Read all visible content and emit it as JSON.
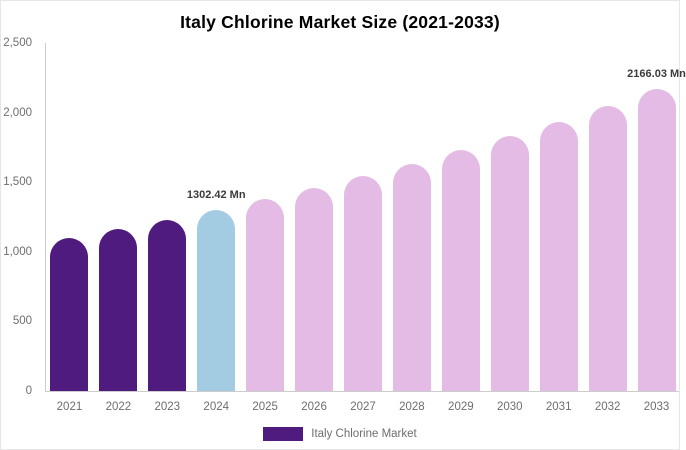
{
  "title": "Italy Chlorine Market Size (2021-2033)",
  "legend": {
    "label": "Italy Chlorine Market"
  },
  "colors": {
    "historical": "#4F1B7E",
    "current": "#A3CBE1",
    "forecast": "#E4BBE5",
    "axis_line": "#cccccc",
    "tick_text": "#6e6e6e",
    "annotation_text": "#3b3b3b"
  },
  "chart_data": {
    "type": "bar",
    "title": "Italy Chlorine Market Size (2021-2033)",
    "unit": "Mn",
    "categories": [
      "2021",
      "2022",
      "2023",
      "2024",
      "2025",
      "2026",
      "2027",
      "2028",
      "2029",
      "2030",
      "2031",
      "2032",
      "2033"
    ],
    "values": [
      1099,
      1163,
      1231,
      1302.42,
      1378,
      1458,
      1543,
      1633,
      1728,
      1829,
      1935,
      2047,
      2166.03
    ],
    "bar_roles": [
      "historical",
      "historical",
      "historical",
      "current",
      "forecast",
      "forecast",
      "forecast",
      "forecast",
      "forecast",
      "forecast",
      "forecast",
      "forecast",
      "forecast"
    ],
    "annotations": [
      {
        "category": "2024",
        "text": "1302.42 Mn"
      },
      {
        "category": "2033",
        "text": "2166.03 Mn"
      }
    ],
    "ylim": [
      0,
      2500
    ],
    "ytick_values": [
      0,
      500,
      1000,
      1500,
      2000,
      2500
    ],
    "ytick_labels": [
      "0",
      "500",
      "1,000",
      "1,500",
      "2,000",
      "2,500"
    ],
    "legend_entries": [
      "Italy Chlorine Market"
    ],
    "grid": false,
    "legend_position": "bottom"
  }
}
